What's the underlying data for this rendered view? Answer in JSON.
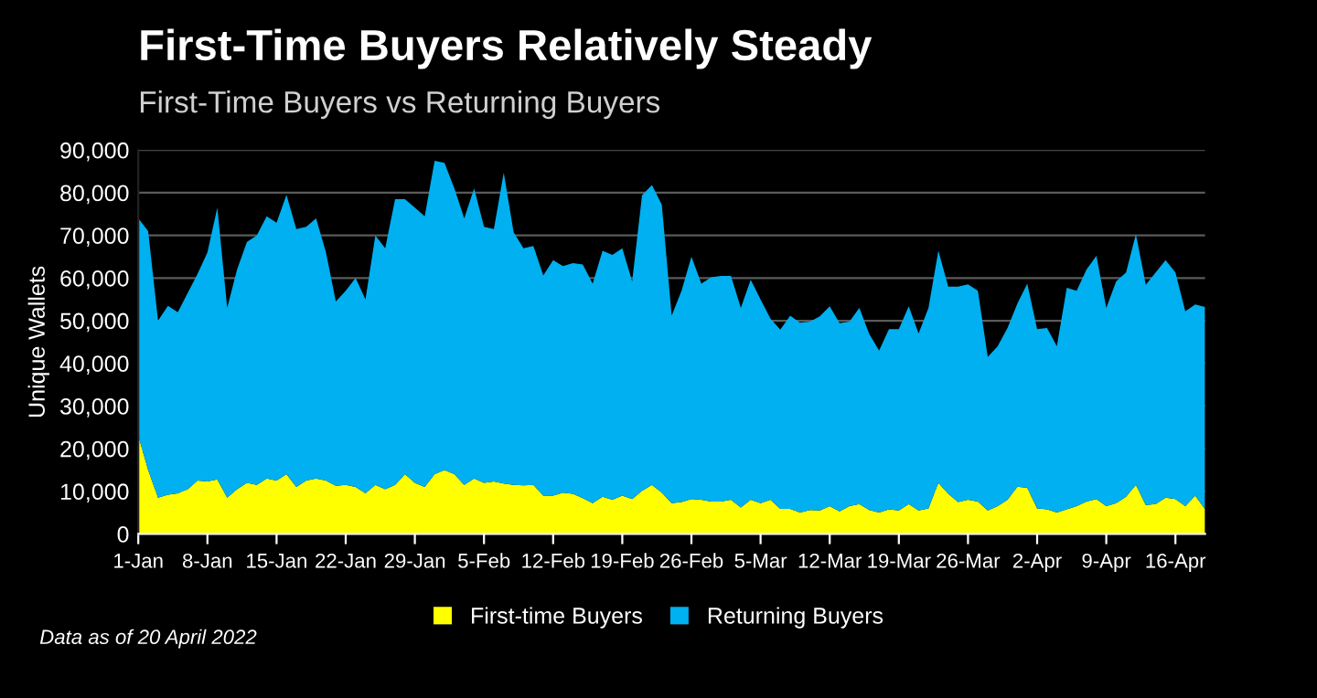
{
  "chart_data": {
    "type": "area",
    "stacked": true,
    "title": "First-Time Buyers Relatively Steady",
    "subtitle": "First-Time Buyers vs Returning Buyers",
    "ylabel": "Unique Wallets",
    "x": [
      "2022-01-01",
      "2022-01-02",
      "2022-01-03",
      "2022-01-04",
      "2022-01-05",
      "2022-01-06",
      "2022-01-07",
      "2022-01-08",
      "2022-01-09",
      "2022-01-10",
      "2022-01-11",
      "2022-01-12",
      "2022-01-13",
      "2022-01-14",
      "2022-01-15",
      "2022-01-16",
      "2022-01-17",
      "2022-01-18",
      "2022-01-19",
      "2022-01-20",
      "2022-01-21",
      "2022-01-22",
      "2022-01-23",
      "2022-01-24",
      "2022-01-25",
      "2022-01-26",
      "2022-01-27",
      "2022-01-28",
      "2022-01-29",
      "2022-01-30",
      "2022-01-31",
      "2022-02-01",
      "2022-02-02",
      "2022-02-03",
      "2022-02-04",
      "2022-02-05",
      "2022-02-06",
      "2022-02-07",
      "2022-02-08",
      "2022-02-09",
      "2022-02-10",
      "2022-02-11",
      "2022-02-12",
      "2022-02-13",
      "2022-02-14",
      "2022-02-15",
      "2022-02-16",
      "2022-02-17",
      "2022-02-18",
      "2022-02-19",
      "2022-02-20",
      "2022-02-21",
      "2022-02-22",
      "2022-02-23",
      "2022-02-24",
      "2022-02-25",
      "2022-02-26",
      "2022-02-27",
      "2022-02-28",
      "2022-03-01",
      "2022-03-02",
      "2022-03-03",
      "2022-03-04",
      "2022-03-05",
      "2022-03-06",
      "2022-03-07",
      "2022-03-08",
      "2022-03-09",
      "2022-03-10",
      "2022-03-11",
      "2022-03-12",
      "2022-03-13",
      "2022-03-14",
      "2022-03-15",
      "2022-03-16",
      "2022-03-17",
      "2022-03-18",
      "2022-03-19",
      "2022-03-20",
      "2022-03-21",
      "2022-03-22",
      "2022-03-23",
      "2022-03-24",
      "2022-03-25",
      "2022-03-26",
      "2022-03-27",
      "2022-03-28",
      "2022-03-29",
      "2022-03-30",
      "2022-03-31",
      "2022-04-01",
      "2022-04-02",
      "2022-04-03",
      "2022-04-04",
      "2022-04-05",
      "2022-04-06",
      "2022-04-07",
      "2022-04-08",
      "2022-04-09",
      "2022-04-10",
      "2022-04-11",
      "2022-04-12",
      "2022-04-13",
      "2022-04-14",
      "2022-04-15",
      "2022-04-16",
      "2022-04-17",
      "2022-04-18",
      "2022-04-19"
    ],
    "series": [
      {
        "name": "First-time Buyers",
        "color": "#ffff00",
        "values": [
          23000,
          15000,
          8500,
          9200,
          9500,
          10500,
          12500,
          12300,
          12800,
          8500,
          10500,
          12000,
          11500,
          13000,
          12500,
          14000,
          11000,
          12500,
          13000,
          12500,
          11300,
          11500,
          11000,
          9500,
          11500,
          10500,
          11500,
          14000,
          12000,
          11000,
          14000,
          15000,
          14000,
          11500,
          13000,
          12000,
          12300,
          11800,
          11500,
          11400,
          11500,
          9000,
          9000,
          9700,
          9400,
          8400,
          7200,
          8700,
          8000,
          9000,
          8200,
          10100,
          11500,
          9700,
          7200,
          7500,
          8200,
          8000,
          7600,
          7600,
          8000,
          6200,
          8000,
          7200,
          8000,
          5900,
          5900,
          5000,
          5600,
          5500,
          6500,
          5300,
          6500,
          7000,
          5600,
          5000,
          5800,
          5500,
          7000,
          5500,
          6000,
          12000,
          9400,
          7500,
          8000,
          7600,
          5500,
          6500,
          8000,
          11100,
          10800,
          6000,
          5800,
          5000,
          5800,
          6500,
          7600,
          8200,
          6500,
          7200,
          8700,
          11500,
          6800,
          7000,
          8500,
          8200,
          6500,
          9000,
          5800
        ]
      },
      {
        "name": "Returning Buyers",
        "color": "#00b0f0",
        "values": [
          51000,
          56000,
          41500,
          44300,
          42500,
          46000,
          48500,
          53700,
          63700,
          44500,
          51500,
          56500,
          58500,
          61500,
          60500,
          65500,
          60500,
          59500,
          61000,
          53500,
          43200,
          45500,
          49000,
          45500,
          58500,
          56500,
          67000,
          64500,
          64500,
          63500,
          73500,
          72000,
          67000,
          62500,
          68000,
          60000,
          59200,
          72900,
          59200,
          55600,
          56000,
          51600,
          55200,
          53100,
          54100,
          54800,
          51500,
          57700,
          57400,
          58000,
          51000,
          69300,
          70300,
          67500,
          44000,
          49500,
          56800,
          50700,
          52600,
          52900,
          52500,
          46800,
          51600,
          47800,
          42500,
          42000,
          45300,
          44500,
          44200,
          45500,
          46900,
          44100,
          43300,
          46000,
          41300,
          38000,
          42200,
          42500,
          46400,
          41500,
          47000,
          54400,
          48600,
          50500,
          50500,
          49400,
          36000,
          37500,
          40300,
          42900,
          47900,
          42000,
          42500,
          39000,
          51900,
          50500,
          54400,
          57000,
          46500,
          52000,
          52600,
          58800,
          51600,
          54300,
          55700,
          53100,
          45700,
          44800,
          47400
        ]
      }
    ],
    "xlim": [
      "2022-01-01",
      "2022-04-19"
    ],
    "xticks": [
      {
        "value": "2022-01-01",
        "label": "1-Jan"
      },
      {
        "value": "2022-01-08",
        "label": "8-Jan"
      },
      {
        "value": "2022-01-15",
        "label": "15-Jan"
      },
      {
        "value": "2022-01-22",
        "label": "22-Jan"
      },
      {
        "value": "2022-01-29",
        "label": "29-Jan"
      },
      {
        "value": "2022-02-05",
        "label": "5-Feb"
      },
      {
        "value": "2022-02-12",
        "label": "12-Feb"
      },
      {
        "value": "2022-02-19",
        "label": "19-Feb"
      },
      {
        "value": "2022-02-26",
        "label": "26-Feb"
      },
      {
        "value": "2022-03-05",
        "label": "5-Mar"
      },
      {
        "value": "2022-03-12",
        "label": "12-Mar"
      },
      {
        "value": "2022-03-19",
        "label": "19-Mar"
      },
      {
        "value": "2022-03-26",
        "label": "26-Mar"
      },
      {
        "value": "2022-04-02",
        "label": "2-Apr"
      },
      {
        "value": "2022-04-09",
        "label": "9-Apr"
      },
      {
        "value": "2022-04-16",
        "label": "16-Apr"
      }
    ],
    "ylim": [
      0,
      90000
    ],
    "yticks": [
      0,
      {
        "value": 10000,
        "label": "10,000"
      },
      {
        "value": 20000,
        "label": "20,000"
      },
      {
        "value": 30000,
        "label": "30,000"
      },
      {
        "value": 40000,
        "label": "40,000"
      },
      {
        "value": 50000,
        "label": "50,000"
      },
      {
        "value": 60000,
        "label": "60,000"
      },
      {
        "value": 70000,
        "label": "70,000"
      },
      {
        "value": 80000,
        "label": "80,000"
      },
      {
        "value": 90000,
        "label": "90,000"
      }
    ],
    "grid": "y",
    "legend": "bottom",
    "annotations": [
      "Data as of 20 April 2022"
    ]
  }
}
